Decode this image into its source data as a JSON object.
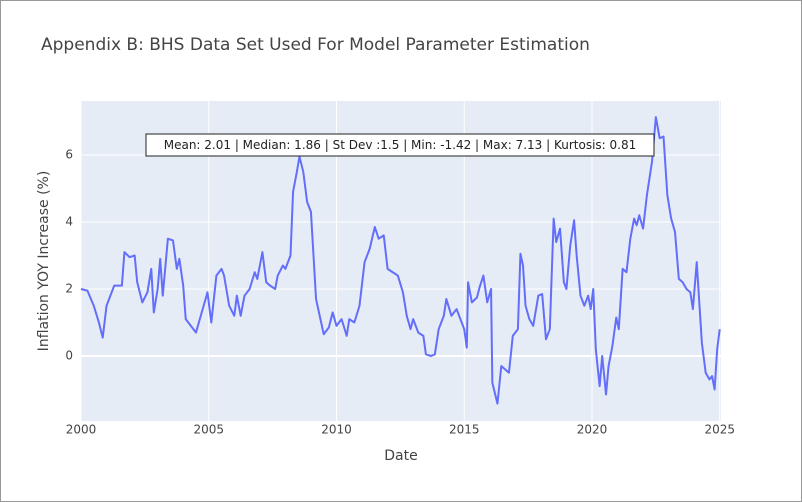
{
  "chart_data": {
    "type": "line",
    "title": "Appendix B: BHS Data Set Used For Model Parameter Estimation",
    "x_label": "Date",
    "y_label": "Inflation YOY Increase (%)",
    "annotation": "Mean: 2.01 | Median: 1.86 | St Dev :1.5 | Min: -1.42 | Max: 7.13 | Kurtosis: 0.81",
    "color": "#636efa",
    "grid": true,
    "xlim": [
      2000,
      2025.05
    ],
    "xticks": [
      2000,
      2005,
      2010,
      2015,
      2020,
      2025
    ],
    "ylim": [
      -1.94,
      7.61
    ],
    "yticks": [
      0,
      2,
      4,
      6
    ],
    "x": [
      2000.0,
      2000.25,
      2000.5,
      2000.7,
      2000.85,
      2001.0,
      2001.3,
      2001.6,
      2001.7,
      2001.9,
      2002.1,
      2002.2,
      2002.4,
      2002.6,
      2002.75,
      2002.85,
      2003.0,
      2003.1,
      2003.2,
      2003.4,
      2003.6,
      2003.75,
      2003.85,
      2004.0,
      2004.1,
      2004.3,
      2004.5,
      2004.8,
      2004.95,
      2005.1,
      2005.3,
      2005.5,
      2005.6,
      2005.8,
      2006.0,
      2006.1,
      2006.25,
      2006.4,
      2006.6,
      2006.8,
      2006.9,
      2007.1,
      2007.25,
      2007.4,
      2007.6,
      2007.7,
      2007.9,
      2008.0,
      2008.2,
      2008.3,
      2008.45,
      2008.55,
      2008.7,
      2008.85,
      2009.0,
      2009.2,
      2009.4,
      2009.5,
      2009.7,
      2009.85,
      2010.0,
      2010.2,
      2010.4,
      2010.5,
      2010.7,
      2010.9,
      2011.1,
      2011.3,
      2011.5,
      2011.65,
      2011.85,
      2012.0,
      2012.2,
      2012.4,
      2012.6,
      2012.75,
      2012.9,
      2013.0,
      2013.2,
      2013.4,
      2013.5,
      2013.7,
      2013.85,
      2014.0,
      2014.2,
      2014.3,
      2014.5,
      2014.7,
      2014.85,
      2015.0,
      2015.1,
      2015.15,
      2015.3,
      2015.5,
      2015.6,
      2015.75,
      2015.9,
      2016.05,
      2016.1,
      2016.3,
      2016.45,
      2016.6,
      2016.75,
      2016.9,
      2017.1,
      2017.2,
      2017.3,
      2017.4,
      2017.55,
      2017.7,
      2017.9,
      2018.05,
      2018.2,
      2018.35,
      2018.5,
      2018.6,
      2018.75,
      2018.9,
      2019.0,
      2019.15,
      2019.3,
      2019.4,
      2019.55,
      2019.7,
      2019.85,
      2019.95,
      2020.05,
      2020.15,
      2020.3,
      2020.4,
      2020.55,
      2020.65,
      2020.8,
      2020.95,
      2021.05,
      2021.2,
      2021.35,
      2021.5,
      2021.65,
      2021.75,
      2021.85,
      2022.0,
      2022.15,
      2022.35,
      2022.5,
      2022.65,
      2022.8,
      2022.95,
      2023.1,
      2023.25,
      2023.4,
      2023.55,
      2023.7,
      2023.85,
      2023.95,
      2024.1,
      2024.3,
      2024.45,
      2024.6,
      2024.7,
      2024.8,
      2024.9,
      2025.0
    ],
    "values": [
      2.0,
      1.95,
      1.5,
      1.0,
      0.55,
      1.5,
      2.1,
      2.1,
      3.1,
      2.95,
      3.0,
      2.2,
      1.6,
      1.9,
      2.6,
      1.3,
      2.0,
      2.9,
      1.8,
      3.5,
      3.45,
      2.6,
      2.9,
      2.1,
      1.1,
      0.9,
      0.7,
      1.5,
      1.9,
      1.0,
      2.4,
      2.6,
      2.4,
      1.5,
      1.2,
      1.8,
      1.2,
      1.8,
      2.0,
      2.5,
      2.3,
      3.1,
      2.2,
      2.1,
      2.0,
      2.4,
      2.7,
      2.6,
      3.0,
      4.9,
      5.5,
      5.95,
      5.5,
      4.6,
      4.3,
      1.7,
      1.0,
      0.65,
      0.85,
      1.3,
      0.9,
      1.1,
      0.6,
      1.1,
      1.0,
      1.5,
      2.8,
      3.2,
      3.85,
      3.5,
      3.6,
      2.6,
      2.5,
      2.4,
      1.9,
      1.2,
      0.8,
      1.1,
      0.7,
      0.6,
      0.05,
      0.0,
      0.05,
      0.8,
      1.2,
      1.7,
      1.2,
      1.4,
      1.1,
      0.8,
      0.25,
      2.2,
      1.6,
      1.75,
      2.05,
      2.4,
      1.6,
      2.0,
      -0.8,
      -1.42,
      -0.3,
      -0.4,
      -0.5,
      0.6,
      0.8,
      3.05,
      2.7,
      1.5,
      1.1,
      0.9,
      1.8,
      1.85,
      0.5,
      0.8,
      4.1,
      3.4,
      3.8,
      2.2,
      2.0,
      3.3,
      4.05,
      3.0,
      1.8,
      1.5,
      1.8,
      1.4,
      2.0,
      0.2,
      -0.9,
      0.0,
      -1.15,
      -0.3,
      0.3,
      1.15,
      0.8,
      2.6,
      2.5,
      3.5,
      4.1,
      3.9,
      4.2,
      3.8,
      4.8,
      5.8,
      7.13,
      6.5,
      6.55,
      4.8,
      4.1,
      3.7,
      2.3,
      2.2,
      2.0,
      1.9,
      1.4,
      2.8,
      0.4,
      -0.5,
      -0.7,
      -0.6,
      -1.0,
      0.2,
      0.8
    ]
  }
}
